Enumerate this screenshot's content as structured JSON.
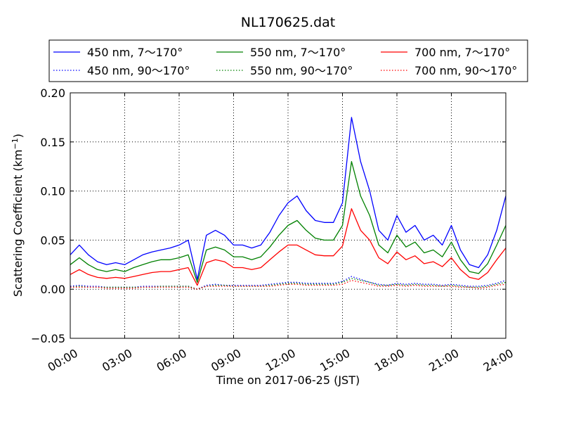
{
  "chart_data": {
    "type": "line",
    "title": "NL170625.dat",
    "xlabel": "Time on 2017-06-25 (JST)",
    "ylabel": "Scattering Coefficient (km",
    "ylabel_sup": "−1",
    "ylabel_end": ")",
    "xlim": [
      "00:00",
      "24:00"
    ],
    "ylim": [
      -0.05,
      0.2
    ],
    "x_ticks": [
      "00:00",
      "03:00",
      "06:00",
      "09:00",
      "12:00",
      "15:00",
      "18:00",
      "21:00",
      "24:00"
    ],
    "y_ticks": [
      "−0.05",
      "0.00",
      "0.05",
      "0.10",
      "0.15",
      "0.20"
    ],
    "grid": true,
    "legend_position": "top",
    "x": [
      "00:00",
      "00:30",
      "01:00",
      "01:30",
      "02:00",
      "02:30",
      "03:00",
      "03:30",
      "04:00",
      "04:30",
      "05:00",
      "05:30",
      "06:00",
      "06:30",
      "07:00",
      "07:30",
      "08:00",
      "08:30",
      "09:00",
      "09:30",
      "10:00",
      "10:30",
      "11:00",
      "11:30",
      "12:00",
      "12:30",
      "13:00",
      "13:30",
      "14:00",
      "14:30",
      "15:00",
      "15:30",
      "16:00",
      "16:30",
      "17:00",
      "17:30",
      "18:00",
      "18:30",
      "19:00",
      "19:30",
      "20:00",
      "20:30",
      "21:00",
      "21:30",
      "22:00",
      "22:30",
      "23:00",
      "23:30",
      "24:00"
    ],
    "series": [
      {
        "name": "450 nm, 7～170°",
        "color": "#0000ff",
        "style": "solid",
        "values": [
          0.035,
          0.045,
          0.035,
          0.028,
          0.025,
          0.027,
          0.025,
          0.03,
          0.035,
          0.038,
          0.04,
          0.042,
          0.045,
          0.05,
          0.01,
          0.055,
          0.06,
          0.055,
          0.045,
          0.045,
          0.042,
          0.045,
          0.058,
          0.075,
          0.088,
          0.095,
          0.08,
          0.07,
          0.068,
          0.068,
          0.088,
          0.175,
          0.13,
          0.1,
          0.06,
          0.05,
          0.075,
          0.058,
          0.065,
          0.05,
          0.055,
          0.045,
          0.065,
          0.04,
          0.025,
          0.022,
          0.035,
          0.06,
          0.095
        ]
      },
      {
        "name": "450 nm, 90～170°",
        "color": "#0000ff",
        "style": "dotted",
        "values": [
          0.003,
          0.004,
          0.003,
          0.003,
          0.002,
          0.002,
          0.002,
          0.002,
          0.003,
          0.003,
          0.003,
          0.003,
          0.003,
          0.003,
          0.0,
          0.004,
          0.005,
          0.004,
          0.004,
          0.004,
          0.004,
          0.004,
          0.005,
          0.006,
          0.007,
          0.007,
          0.006,
          0.006,
          0.006,
          0.006,
          0.008,
          0.013,
          0.01,
          0.007,
          0.005,
          0.004,
          0.006,
          0.005,
          0.006,
          0.005,
          0.005,
          0.004,
          0.005,
          0.004,
          0.003,
          0.003,
          0.004,
          0.006,
          0.009
        ]
      },
      {
        "name": "550 nm, 7～170°",
        "color": "#008000",
        "style": "solid",
        "values": [
          0.025,
          0.032,
          0.025,
          0.02,
          0.018,
          0.02,
          0.018,
          0.022,
          0.025,
          0.028,
          0.03,
          0.03,
          0.032,
          0.035,
          0.007,
          0.04,
          0.043,
          0.04,
          0.033,
          0.033,
          0.03,
          0.033,
          0.043,
          0.055,
          0.065,
          0.07,
          0.06,
          0.052,
          0.05,
          0.05,
          0.065,
          0.13,
          0.095,
          0.075,
          0.045,
          0.037,
          0.055,
          0.043,
          0.048,
          0.037,
          0.04,
          0.033,
          0.048,
          0.03,
          0.018,
          0.016,
          0.026,
          0.045,
          0.065
        ]
      },
      {
        "name": "550 nm, 90～170°",
        "color": "#008000",
        "style": "dotted",
        "values": [
          0.002,
          0.003,
          0.002,
          0.002,
          0.002,
          0.002,
          0.002,
          0.002,
          0.002,
          0.002,
          0.003,
          0.003,
          0.003,
          0.003,
          0.0,
          0.003,
          0.004,
          0.004,
          0.003,
          0.003,
          0.003,
          0.003,
          0.004,
          0.005,
          0.006,
          0.006,
          0.005,
          0.005,
          0.005,
          0.005,
          0.007,
          0.011,
          0.009,
          0.007,
          0.004,
          0.004,
          0.005,
          0.004,
          0.005,
          0.004,
          0.004,
          0.003,
          0.004,
          0.003,
          0.002,
          0.002,
          0.003,
          0.005,
          0.007
        ]
      },
      {
        "name": "700 nm, 7～170°",
        "color": "#ff0000",
        "style": "solid",
        "values": [
          0.015,
          0.02,
          0.015,
          0.012,
          0.011,
          0.012,
          0.011,
          0.013,
          0.015,
          0.017,
          0.018,
          0.018,
          0.02,
          0.022,
          0.004,
          0.027,
          0.03,
          0.028,
          0.022,
          0.022,
          0.02,
          0.022,
          0.03,
          0.038,
          0.045,
          0.045,
          0.04,
          0.035,
          0.034,
          0.034,
          0.044,
          0.082,
          0.06,
          0.05,
          0.032,
          0.026,
          0.038,
          0.03,
          0.034,
          0.026,
          0.028,
          0.023,
          0.032,
          0.02,
          0.012,
          0.01,
          0.017,
          0.03,
          0.042
        ]
      },
      {
        "name": "700 nm, 90～170°",
        "color": "#ff0000",
        "style": "dotted",
        "values": [
          0.002,
          0.002,
          0.002,
          0.002,
          0.001,
          0.001,
          0.001,
          0.001,
          0.002,
          0.002,
          0.002,
          0.002,
          0.002,
          0.002,
          0.0,
          0.003,
          0.003,
          0.003,
          0.003,
          0.003,
          0.003,
          0.003,
          0.003,
          0.004,
          0.005,
          0.005,
          0.004,
          0.004,
          0.004,
          0.004,
          0.005,
          0.009,
          0.007,
          0.005,
          0.003,
          0.003,
          0.004,
          0.003,
          0.004,
          0.003,
          0.003,
          0.003,
          0.003,
          0.002,
          0.002,
          0.001,
          0.002,
          0.004,
          0.005
        ]
      }
    ]
  }
}
